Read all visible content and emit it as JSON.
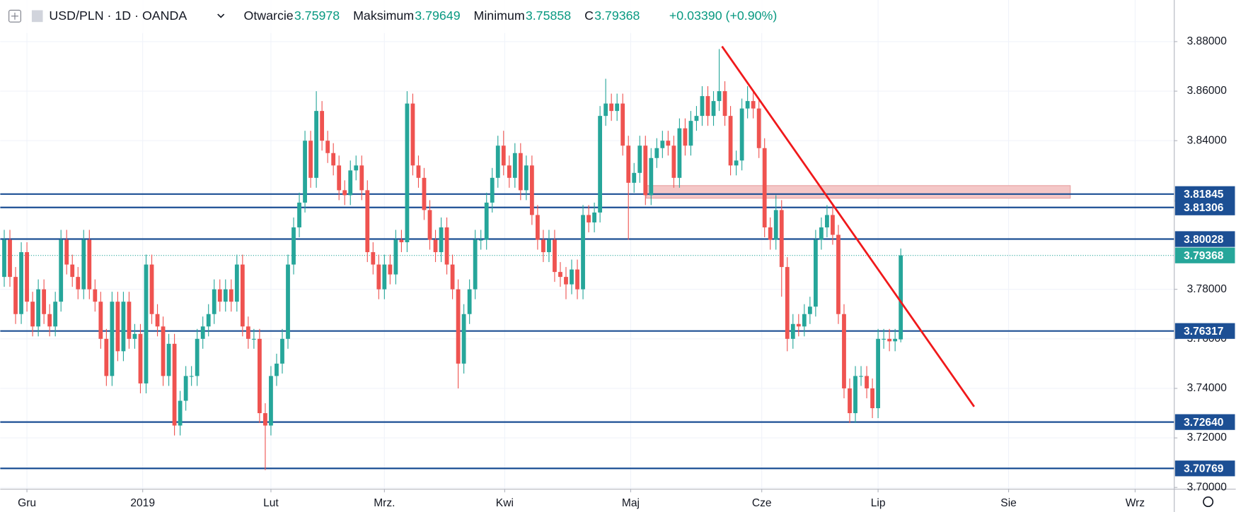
{
  "header": {
    "title": "USD/PLN · 1D · OANDA",
    "fields": [
      {
        "label": "Otwarcie",
        "value": 3.75978
      },
      {
        "label": "Maksimum",
        "value": 3.79649
      },
      {
        "label": "Minimum",
        "value": 3.75858
      },
      {
        "label": "C",
        "value": 3.79368
      }
    ],
    "change": "+0.03390 (+0.90%)"
  },
  "chart_data": {
    "type": "candlestick",
    "up_color": "#26a69a",
    "down_color": "#ef5350",
    "level_color": "#1c4f94",
    "grid": true,
    "xlim": [
      -0.7,
      206.2
    ],
    "ylim": [
      3.6993,
      3.8968
    ],
    "xticks": [
      {
        "value": 4,
        "label": "Gru"
      },
      {
        "value": 24.4,
        "label": "2019"
      },
      {
        "value": 47,
        "label": "Lut"
      },
      {
        "value": 67,
        "label": "Mrz."
      },
      {
        "value": 88.2,
        "label": "Kwi"
      },
      {
        "value": 110.4,
        "label": "Maj"
      },
      {
        "value": 133.5,
        "label": "Cze"
      },
      {
        "value": 154,
        "label": "Lip"
      },
      {
        "value": 177,
        "label": "Sie"
      },
      {
        "value": 199.3,
        "label": "Wrz"
      }
    ],
    "yticks": [
      {
        "value": 3.88,
        "label": "3.88000"
      },
      {
        "value": 3.86,
        "label": "3.86000"
      },
      {
        "value": 3.84,
        "label": "3.84000"
      },
      {
        "value": 3.78,
        "label": "3.78000"
      },
      {
        "value": 3.76,
        "label": "3.76000"
      },
      {
        "value": 3.74,
        "label": "3.74000"
      },
      {
        "value": 3.72,
        "label": "3.72000"
      },
      {
        "value": 3.7,
        "label": "3.70000"
      }
    ],
    "levels": [
      3.81845,
      3.81306,
      3.80028,
      3.76317,
      {
        "value": 3.7264,
        "label": "3.72640"
      },
      3.70769
    ],
    "price_line": 3.79368,
    "price_color": "#26a69a",
    "open": [
      3.785,
      3.8,
      3.785,
      3.77,
      3.795,
      3.775,
      3.765,
      3.78,
      3.77,
      3.765,
      3.775,
      3.8,
      3.79,
      3.785,
      3.78,
      3.8,
      3.78,
      3.775,
      3.76,
      3.745,
      3.775,
      3.755,
      3.775,
      3.76,
      3.762,
      3.742,
      3.79,
      3.77,
      3.765,
      3.745,
      3.758,
      3.725,
      3.735,
      3.745,
      3.745,
      3.76,
      3.765,
      3.77,
      3.78,
      3.775,
      3.78,
      3.775,
      3.79,
      3.765,
      3.76,
      3.76,
      3.73,
      3.725,
      3.745,
      3.75,
      3.76,
      3.79,
      3.805,
      3.815,
      3.84,
      3.825,
      3.852,
      3.84,
      3.835,
      3.83,
      3.82,
      3.818,
      3.828,
      3.83,
      3.82,
      3.795,
      3.79,
      3.78,
      3.79,
      3.786,
      3.8,
      3.799,
      3.855,
      3.83,
      3.825,
      3.812,
      3.8,
      3.795,
      3.805,
      3.79,
      3.78,
      3.75,
      3.77,
      3.78,
      3.8,
      3.8,
      3.815,
      3.825,
      3.838,
      3.83,
      3.825,
      3.835,
      3.82,
      3.83,
      3.81,
      3.8,
      3.795,
      3.8,
      3.787,
      3.785,
      3.782,
      3.788,
      3.78,
      3.81,
      3.807,
      3.811,
      3.85,
      3.855,
      3.852,
      3.855,
      3.838,
      3.823,
      3.827,
      3.838,
      3.818,
      3.833,
      3.837,
      3.84,
      3.838,
      3.825,
      3.845,
      3.838,
      3.848,
      3.85,
      3.858,
      3.85,
      3.856,
      3.86,
      3.85,
      3.83,
      3.832,
      3.853,
      3.856,
      3.853,
      3.837,
      3.805,
      3.8,
      3.812,
      3.789,
      3.76,
      3.766,
      3.765,
      3.77,
      3.773,
      3.8,
      3.805,
      3.81,
      3.802,
      3.77,
      3.74,
      3.73,
      3.745,
      3.745,
      3.74,
      3.732,
      3.76,
      3.76,
      3.759,
      3.75978
    ],
    "high": [
      3.804,
      3.804,
      3.789,
      3.799,
      3.799,
      3.779,
      3.784,
      3.784,
      3.774,
      3.779,
      3.804,
      3.804,
      3.794,
      3.789,
      3.804,
      3.804,
      3.784,
      3.779,
      3.764,
      3.779,
      3.779,
      3.779,
      3.779,
      3.766,
      3.766,
      3.794,
      3.794,
      3.774,
      3.769,
      3.762,
      3.762,
      3.739,
      3.749,
      3.749,
      3.764,
      3.769,
      3.774,
      3.784,
      3.784,
      3.784,
      3.784,
      3.794,
      3.794,
      3.769,
      3.764,
      3.764,
      3.734,
      3.749,
      3.754,
      3.764,
      3.794,
      3.809,
      3.819,
      3.844,
      3.844,
      3.86,
      3.856,
      3.844,
      3.839,
      3.834,
      3.824,
      3.832,
      3.834,
      3.834,
      3.824,
      3.799,
      3.794,
      3.794,
      3.794,
      3.804,
      3.804,
      3.86,
      3.859,
      3.834,
      3.829,
      3.816,
      3.804,
      3.809,
      3.809,
      3.794,
      3.784,
      3.774,
      3.784,
      3.804,
      3.804,
      3.819,
      3.829,
      3.842,
      3.844,
      3.834,
      3.839,
      3.839,
      3.834,
      3.834,
      3.814,
      3.804,
      3.804,
      3.804,
      3.791,
      3.789,
      3.792,
      3.792,
      3.814,
      3.814,
      3.815,
      3.854,
      3.865,
      3.859,
      3.859,
      3.859,
      3.842,
      3.831,
      3.842,
      3.842,
      3.837,
      3.841,
      3.844,
      3.844,
      3.842,
      3.849,
      3.849,
      3.852,
      3.854,
      3.862,
      3.862,
      3.86,
      3.877,
      3.864,
      3.854,
      3.836,
      3.857,
      3.862,
      3.86,
      3.857,
      3.841,
      3.809,
      3.818,
      3.816,
      3.793,
      3.77,
      3.77,
      3.774,
      3.777,
      3.804,
      3.809,
      3.814,
      3.814,
      3.806,
      3.774,
      3.744,
      3.749,
      3.749,
      3.749,
      3.744,
      3.764,
      3.764,
      3.764,
      3.764,
      3.79649
    ],
    "low": [
      3.781,
      3.781,
      3.766,
      3.766,
      3.771,
      3.761,
      3.761,
      3.766,
      3.761,
      3.761,
      3.771,
      3.786,
      3.781,
      3.776,
      3.776,
      3.776,
      3.771,
      3.756,
      3.741,
      3.741,
      3.751,
      3.751,
      3.756,
      3.756,
      3.738,
      3.738,
      3.766,
      3.761,
      3.741,
      3.741,
      3.721,
      3.721,
      3.731,
      3.741,
      3.741,
      3.756,
      3.761,
      3.766,
      3.771,
      3.771,
      3.771,
      3.771,
      3.761,
      3.756,
      3.756,
      3.726,
      3.707,
      3.721,
      3.741,
      3.746,
      3.756,
      3.786,
      3.801,
      3.811,
      3.821,
      3.821,
      3.836,
      3.831,
      3.826,
      3.816,
      3.814,
      3.814,
      3.824,
      3.816,
      3.791,
      3.786,
      3.776,
      3.776,
      3.782,
      3.782,
      3.795,
      3.795,
      3.826,
      3.821,
      3.808,
      3.796,
      3.791,
      3.791,
      3.786,
      3.776,
      3.74,
      3.746,
      3.766,
      3.776,
      3.796,
      3.796,
      3.811,
      3.821,
      3.826,
      3.821,
      3.821,
      3.816,
      3.816,
      3.806,
      3.796,
      3.791,
      3.791,
      3.783,
      3.781,
      3.776,
      3.778,
      3.776,
      3.776,
      3.803,
      3.803,
      3.807,
      3.846,
      3.848,
      3.848,
      3.834,
      3.8,
      3.819,
      3.823,
      3.814,
      3.814,
      3.829,
      3.833,
      3.834,
      3.821,
      3.821,
      3.834,
      3.834,
      3.844,
      3.846,
      3.846,
      3.846,
      3.852,
      3.846,
      3.826,
      3.826,
      3.828,
      3.849,
      3.849,
      3.833,
      3.801,
      3.796,
      3.796,
      3.777,
      3.755,
      3.756,
      3.761,
      3.761,
      3.766,
      3.769,
      3.796,
      3.801,
      3.798,
      3.766,
      3.736,
      3.726,
      3.726,
      3.741,
      3.736,
      3.728,
      3.728,
      3.756,
      3.755,
      3.755,
      3.75858
    ],
    "close": [
      3.8,
      3.785,
      3.77,
      3.795,
      3.775,
      3.765,
      3.78,
      3.77,
      3.765,
      3.775,
      3.8,
      3.79,
      3.785,
      3.78,
      3.8,
      3.78,
      3.775,
      3.76,
      3.745,
      3.775,
      3.755,
      3.775,
      3.76,
      3.762,
      3.742,
      3.79,
      3.77,
      3.765,
      3.745,
      3.758,
      3.725,
      3.735,
      3.745,
      3.745,
      3.76,
      3.765,
      3.77,
      3.78,
      3.775,
      3.78,
      3.775,
      3.79,
      3.765,
      3.76,
      3.76,
      3.73,
      3.725,
      3.745,
      3.75,
      3.76,
      3.79,
      3.805,
      3.815,
      3.84,
      3.825,
      3.852,
      3.84,
      3.835,
      3.83,
      3.82,
      3.818,
      3.828,
      3.83,
      3.82,
      3.795,
      3.79,
      3.78,
      3.79,
      3.786,
      3.8,
      3.799,
      3.855,
      3.83,
      3.825,
      3.812,
      3.8,
      3.795,
      3.805,
      3.79,
      3.78,
      3.75,
      3.77,
      3.78,
      3.8,
      3.8,
      3.815,
      3.825,
      3.838,
      3.83,
      3.825,
      3.835,
      3.82,
      3.83,
      3.81,
      3.8,
      3.795,
      3.8,
      3.787,
      3.785,
      3.782,
      3.788,
      3.78,
      3.81,
      3.807,
      3.811,
      3.85,
      3.855,
      3.852,
      3.855,
      3.838,
      3.823,
      3.827,
      3.838,
      3.818,
      3.833,
      3.837,
      3.84,
      3.838,
      3.825,
      3.845,
      3.838,
      3.848,
      3.85,
      3.858,
      3.85,
      3.856,
      3.86,
      3.85,
      3.83,
      3.832,
      3.853,
      3.856,
      3.853,
      3.837,
      3.805,
      3.8,
      3.812,
      3.789,
      3.76,
      3.766,
      3.765,
      3.77,
      3.773,
      3.8,
      3.805,
      3.81,
      3.802,
      3.77,
      3.74,
      3.73,
      3.745,
      3.745,
      3.74,
      3.732,
      3.76,
      3.76,
      3.759,
      3.76,
      3.79368
    ]
  }
}
